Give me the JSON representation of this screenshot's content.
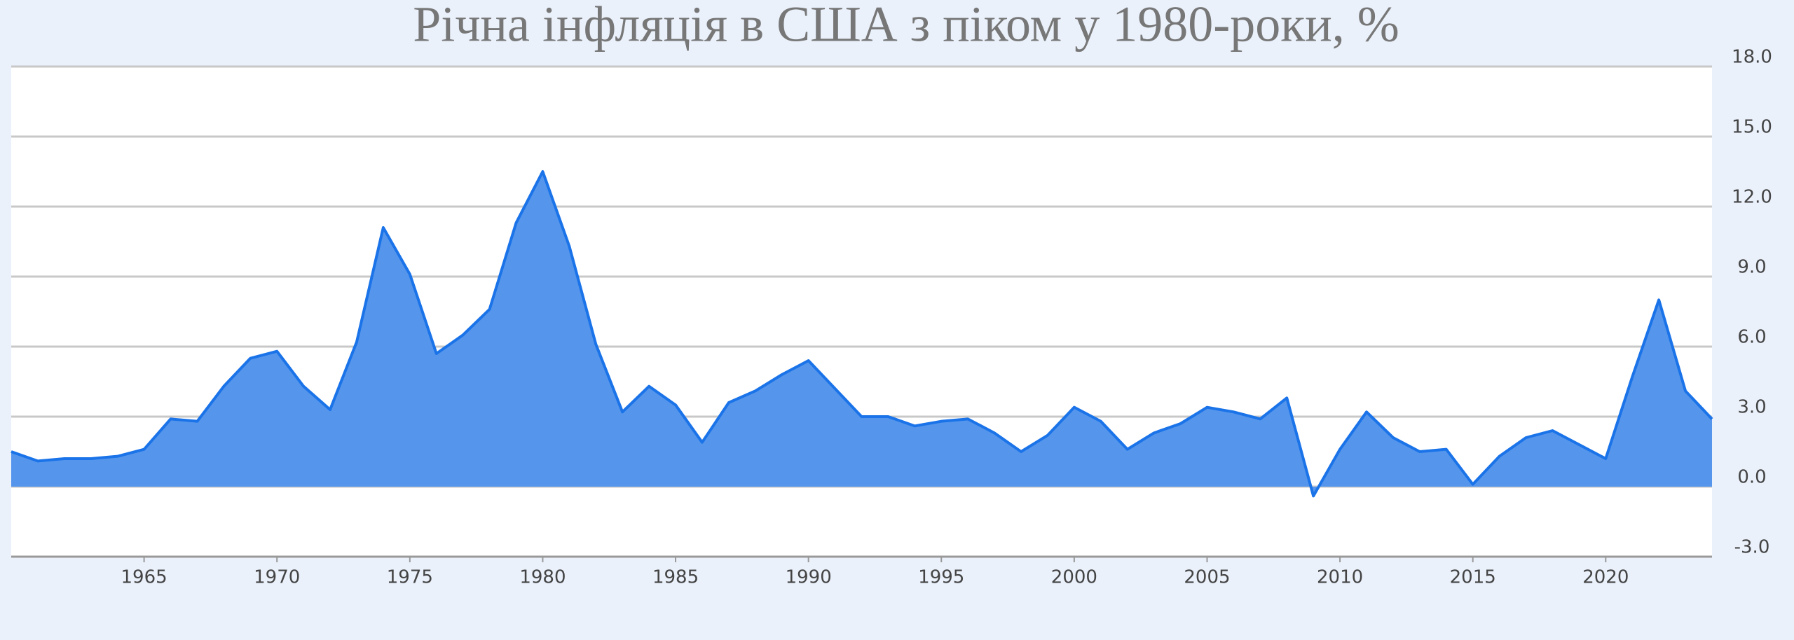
{
  "chart_data": {
    "type": "area",
    "title": "Річна інфляція в США з піком у 1980-роки, %",
    "x": [
      1960,
      1961,
      1962,
      1963,
      1964,
      1965,
      1966,
      1967,
      1968,
      1969,
      1970,
      1971,
      1972,
      1973,
      1974,
      1975,
      1976,
      1977,
      1978,
      1979,
      1980,
      1981,
      1982,
      1983,
      1984,
      1985,
      1986,
      1987,
      1988,
      1989,
      1990,
      1991,
      1992,
      1993,
      1994,
      1995,
      1996,
      1997,
      1998,
      1999,
      2000,
      2001,
      2002,
      2003,
      2004,
      2005,
      2006,
      2007,
      2008,
      2009,
      2010,
      2011,
      2012,
      2013,
      2014,
      2015,
      2016,
      2017,
      2018,
      2019,
      2020,
      2021,
      2022,
      2023,
      2024
    ],
    "values": [
      1.5,
      1.1,
      1.2,
      1.2,
      1.3,
      1.6,
      2.9,
      2.8,
      4.3,
      5.5,
      5.8,
      4.3,
      3.3,
      6.2,
      11.1,
      9.1,
      5.7,
      6.5,
      7.6,
      11.3,
      13.5,
      10.3,
      6.1,
      3.2,
      4.3,
      3.5,
      1.9,
      3.6,
      4.1,
      4.8,
      5.4,
      4.2,
      3.0,
      3.0,
      2.6,
      2.8,
      2.9,
      2.3,
      1.5,
      2.2,
      3.4,
      2.8,
      1.6,
      2.3,
      2.7,
      3.4,
      3.2,
      2.9,
      3.8,
      -0.4,
      1.6,
      3.2,
      2.1,
      1.5,
      1.6,
      0.1,
      1.3,
      2.1,
      2.4,
      1.8,
      1.2,
      4.7,
      8.0,
      4.1,
      2.9
    ],
    "color": "#5596ec",
    "line_color": "#1a73e8",
    "xlim": [
      1960,
      2024
    ],
    "xticks": [
      1965,
      1970,
      1975,
      1980,
      1985,
      1990,
      1995,
      2000,
      2005,
      2010,
      2015,
      2020
    ],
    "ylim": [
      -3,
      18
    ],
    "yticks": [
      {
        "value": -3,
        "label": "-3.0"
      },
      {
        "value": 0,
        "label": "0.0"
      },
      {
        "value": 3,
        "label": "3.0"
      },
      {
        "value": 6,
        "label": "6.0"
      },
      {
        "value": 9,
        "label": "9.0"
      },
      {
        "value": 12,
        "label": "12.0"
      },
      {
        "value": 15,
        "label": "15.0"
      },
      {
        "value": 18,
        "label": "18.0"
      }
    ],
    "grid": true
  }
}
